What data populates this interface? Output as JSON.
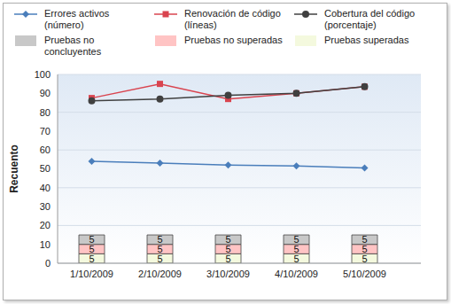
{
  "chart_data": {
    "type": "combo",
    "y_label": "Recuento",
    "categories": [
      "1/10/2009",
      "2/10/2009",
      "3/10/2009",
      "4/10/2009",
      "5/10/2009"
    ],
    "ylim": [
      0,
      100
    ],
    "yticks": [
      0,
      10,
      20,
      30,
      40,
      50,
      60,
      70,
      80,
      90,
      100
    ],
    "grid": true,
    "stacked": true,
    "series": [
      {
        "name": "Errores activos (número)",
        "type": "line",
        "marker": "diamond",
        "color": "#4a7ebb",
        "values": [
          54,
          53,
          52,
          51.5,
          50.5
        ]
      },
      {
        "name": "Renovación de código (líneas)",
        "type": "line",
        "marker": "square",
        "color": "#d9444f",
        "values": [
          87.5,
          95,
          87,
          90,
          93.5
        ]
      },
      {
        "name": "Cobertura del código (porcentaje)",
        "type": "line",
        "marker": "circle",
        "color": "#404040",
        "values": [
          86,
          87,
          89,
          90,
          93.5
        ]
      },
      {
        "name": "Pruebas no concluyentes",
        "type": "bar",
        "color": "#c8c8c8",
        "data_labels": true,
        "values": [
          5,
          5,
          5,
          5,
          5
        ]
      },
      {
        "name": "Pruebas no superadas",
        "type": "bar",
        "color": "#ffc4c4",
        "data_labels": true,
        "values": [
          5,
          5,
          5,
          5,
          5
        ]
      },
      {
        "name": "Pruebas superadas",
        "type": "bar",
        "color": "#f4f9de",
        "data_labels": true,
        "values": [
          5,
          5,
          5,
          5,
          5
        ]
      }
    ]
  }
}
